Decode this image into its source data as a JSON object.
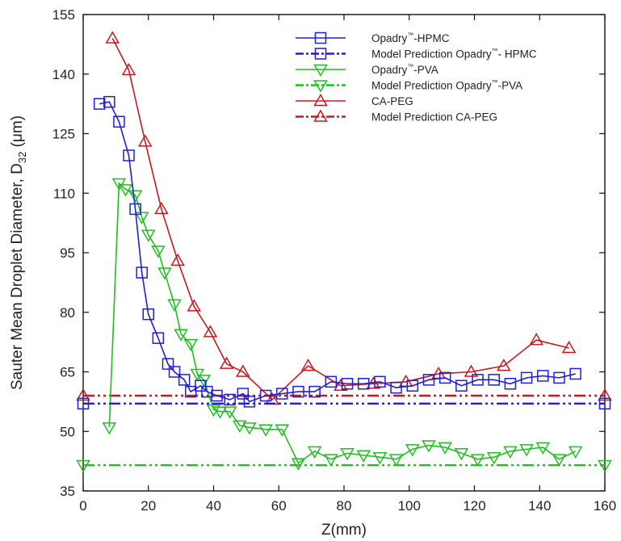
{
  "chart_data": {
    "type": "line",
    "xlabel": "Z(mm)",
    "ylabel_main": "Sauter Mean Droplet Diameter, D",
    "ylabel_sub": "32",
    "ylabel_unit": " (μm)",
    "xlim": [
      0,
      160
    ],
    "ylim": [
      35,
      155
    ],
    "xticks": [
      0,
      20,
      40,
      60,
      80,
      100,
      120,
      140,
      160
    ],
    "yticks": [
      35,
      50,
      65,
      80,
      95,
      110,
      125,
      140,
      155
    ],
    "grid": false,
    "legend_position": "top-right",
    "series": [
      {
        "name": "Opadry™-HPMC",
        "name_parts": [
          "Opadry",
          "™",
          "-HPMC"
        ],
        "color": "#1f1fd8",
        "style": "solid",
        "marker": "square",
        "x": [
          5,
          8,
          11,
          14,
          16,
          18,
          20,
          23,
          26,
          28,
          31,
          33,
          36,
          38,
          41,
          45,
          49,
          51,
          56,
          61,
          66,
          71,
          76,
          81,
          86,
          91,
          96,
          101,
          106,
          111,
          116,
          121,
          126,
          131,
          136,
          141,
          146,
          151
        ],
        "y": [
          132.5,
          133,
          128,
          119.5,
          106,
          90,
          79.5,
          73.5,
          67,
          65,
          63,
          60,
          61.5,
          60,
          59,
          58,
          59.5,
          57.5,
          59,
          59.5,
          60,
          60,
          62.5,
          62,
          62,
          62.5,
          61,
          61.5,
          63,
          63.5,
          61.5,
          63,
          63,
          62,
          63.5,
          64,
          63.5,
          64.5
        ]
      },
      {
        "name": "Model Prediction Opadry™- HPMC",
        "name_parts": [
          "Model Prediction Opadry",
          "™",
          "- HPMC"
        ],
        "color": "#1f1fd8",
        "style": "dashdot",
        "marker": "square",
        "x": [
          0,
          160
        ],
        "y": [
          57,
          57
        ]
      },
      {
        "name": "Opadry™-PVA",
        "name_parts": [
          "Opadry",
          "™",
          "-PVA"
        ],
        "color": "#1fbf1f",
        "style": "solid",
        "marker": "triangle-down",
        "x": [
          8,
          11,
          13,
          16,
          18,
          20,
          23,
          25,
          28,
          30,
          33,
          35,
          37,
          40,
          42,
          45,
          48,
          51,
          56,
          61,
          66,
          71,
          76,
          81,
          86,
          91,
          96,
          101,
          106,
          111,
          116,
          121,
          126,
          131,
          136,
          141,
          146,
          151
        ],
        "y": [
          51,
          112.5,
          111,
          109.5,
          104,
          99.5,
          95.5,
          90,
          82,
          74.5,
          72,
          64.5,
          63,
          55.5,
          55,
          55,
          51.5,
          51,
          50.5,
          50.5,
          42,
          45,
          43,
          44.5,
          44,
          43.5,
          43,
          45.5,
          46.5,
          46,
          44.5,
          43,
          43.5,
          45,
          45.5,
          46,
          43,
          45
        ]
      },
      {
        "name": "Model Prediction Opadry™-PVA",
        "name_parts": [
          "Model Prediction Opadry",
          "™",
          "-PVA"
        ],
        "color": "#1fbf1f",
        "style": "dashdot",
        "marker": "triangle-down",
        "x": [
          0,
          160
        ],
        "y": [
          41.5,
          41.5
        ]
      },
      {
        "name": "CA-PEG",
        "name_parts": [
          "CA-PEG",
          "",
          ""
        ],
        "color": "#c8191e",
        "style": "solid",
        "marker": "triangle-up",
        "x": [
          9,
          14,
          19,
          24,
          29,
          34,
          39,
          44,
          49,
          58,
          69,
          79,
          89,
          99,
          109,
          119,
          129,
          139,
          149
        ],
        "y": [
          149,
          141,
          123,
          106,
          93,
          81.5,
          75,
          67,
          65,
          58,
          66.5,
          61.5,
          62,
          62.5,
          64.5,
          65,
          66.5,
          73,
          71
        ]
      },
      {
        "name": "Model Prediction CA-PEG",
        "name_parts": [
          "Model Prediction CA-PEG",
          "",
          ""
        ],
        "color": "#c8191e",
        "style": "dashdot",
        "marker": "triangle-up",
        "x": [
          0,
          160
        ],
        "y": [
          59,
          59
        ]
      }
    ]
  }
}
